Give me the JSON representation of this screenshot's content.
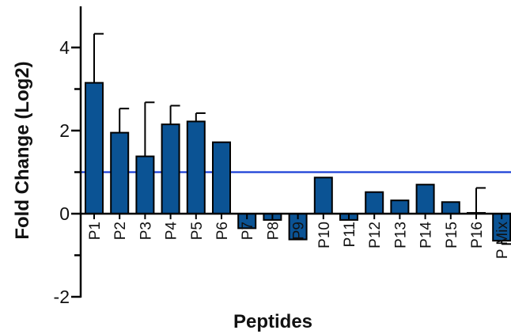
{
  "chart_data": {
    "type": "bar",
    "title": "",
    "xlabel": "Peptides",
    "ylabel": "Fold Change  (Log2)",
    "ylim": [
      -2,
      5
    ],
    "yticks": [
      -2,
      0,
      2,
      4
    ],
    "ytick_labels": [
      "-2",
      "0",
      "2",
      "4"
    ],
    "categories": [
      "P1",
      "P2",
      "P3",
      "P4",
      "P5",
      "P6",
      "P7",
      "P8",
      "P9",
      "P10",
      "P11",
      "P12",
      "P13",
      "P14",
      "P15",
      "P16",
      "P Mix"
    ],
    "values": [
      3.15,
      1.95,
      1.38,
      2.15,
      2.22,
      1.72,
      -0.35,
      -0.15,
      -0.62,
      0.87,
      -0.15,
      0.52,
      0.32,
      0.7,
      0.28,
      0.02,
      -0.65
    ],
    "error_upper": [
      1.18,
      0.58,
      1.3,
      0.45,
      0.2,
      0.0,
      0.0,
      0.0,
      0.0,
      0.0,
      0.0,
      0.0,
      0.0,
      0.0,
      0.0,
      0.6,
      0.08
    ],
    "reference_line": 1,
    "colors": {
      "bar": "#0b5394",
      "bar_edge": "#000000",
      "reference_line": "#1a3fd6",
      "axis": "#000000"
    },
    "grid": false,
    "legend": "none"
  }
}
